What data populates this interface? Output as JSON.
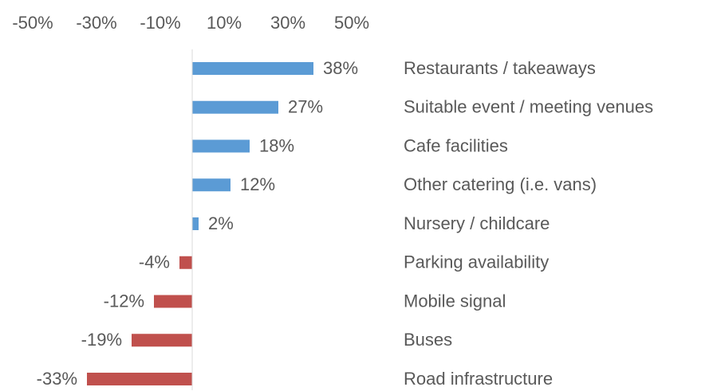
{
  "chart_data": {
    "type": "bar",
    "orientation": "horizontal",
    "categories": [
      "Restaurants / takeaways",
      "Suitable event / meeting venues",
      "Cafe facilities",
      "Other catering (i.e. vans)",
      "Nursery / childcare",
      "Parking availability",
      "Mobile signal",
      "Buses",
      "Road infrastructure"
    ],
    "values": [
      38,
      27,
      18,
      12,
      2,
      -4,
      -12,
      -19,
      -33
    ],
    "value_labels": [
      "38%",
      "27%",
      "18%",
      "12%",
      "2%",
      "-4%",
      "-12%",
      "-19%",
      "-33%"
    ],
    "positive_color": "#5b9bd5",
    "negative_color": "#c0504d",
    "xlim": [
      -50,
      50
    ],
    "xticks": [
      {
        "value": -50,
        "label": "-50%"
      },
      {
        "value": -30,
        "label": "-30%"
      },
      {
        "value": -10,
        "label": "-10%"
      },
      {
        "value": 10,
        "label": "10%"
      },
      {
        "value": 30,
        "label": "30%"
      },
      {
        "value": 50,
        "label": "50%"
      }
    ],
    "grid": false
  }
}
